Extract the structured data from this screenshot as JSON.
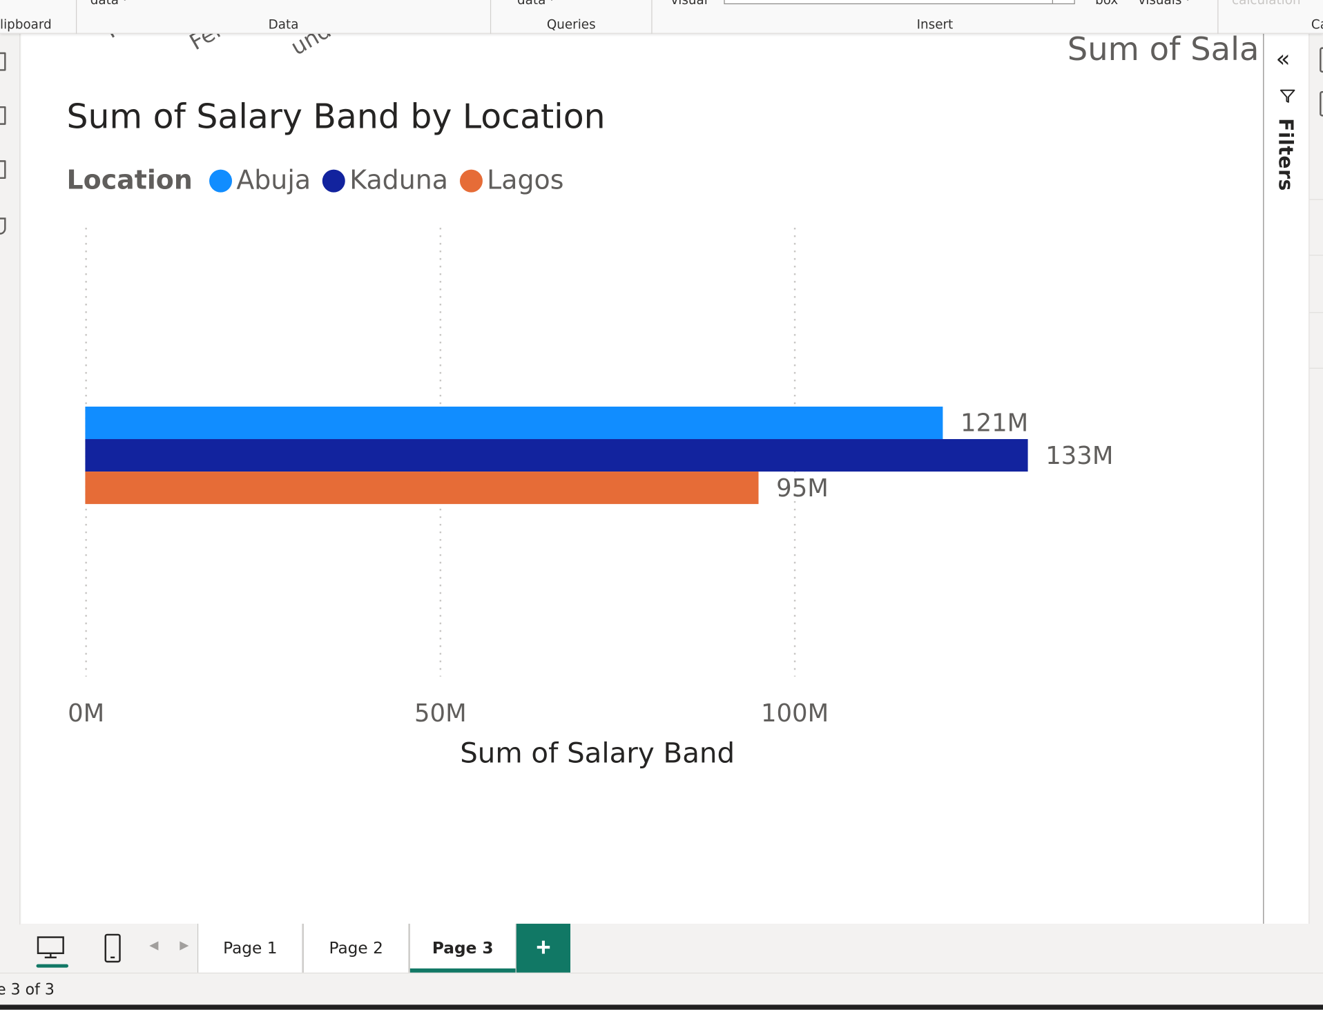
{
  "ribbon": {
    "groups": [
      "lipboard",
      "Data",
      "Queries",
      "Insert",
      "Ca"
    ],
    "top_items": [
      "data ·",
      "data ·",
      "visual",
      "box",
      "visuals ·",
      "calculation"
    ]
  },
  "canvas": {
    "previous_visual_labels": [
      "M",
      "Fem",
      "undis"
    ],
    "cut_title": "Sum of Sala"
  },
  "chart": {
    "title": "Sum of Salary Band by Location",
    "legend_title": "Location",
    "x_axis_title": "Sum of Salary Band",
    "data_labels": [
      "121M",
      "133M",
      "95M"
    ]
  },
  "chart_data": {
    "type": "bar",
    "orientation": "horizontal",
    "title": "Sum of Salary Band by Location",
    "xlabel": "Sum of Salary Band",
    "ylabel": "",
    "legend_title": "Location",
    "legend_position": "top-left",
    "series": [
      {
        "name": "Abuja",
        "values": [
          121
        ],
        "color": "#118dff"
      },
      {
        "name": "Kaduna",
        "values": [
          133
        ],
        "color": "#12239e"
      },
      {
        "name": "Lagos",
        "values": [
          95
        ],
        "color": "#e66c37"
      }
    ],
    "value_unit": "M",
    "xlim": [
      0,
      150
    ],
    "x_ticks": [
      0,
      50,
      100
    ],
    "x_tick_labels": [
      "0M",
      "50M",
      "100M"
    ],
    "grid": "vertical dotted"
  },
  "filters_pane": {
    "label": "Filters",
    "collapse_icon": "double-chevron-left-icon",
    "filter_icon": "funnel-icon"
  },
  "tabs": {
    "items": [
      {
        "label": "Page 1",
        "active": false
      },
      {
        "label": "Page 2",
        "active": false
      },
      {
        "label": "Page 3",
        "active": true
      }
    ],
    "add_label": "+"
  },
  "status": {
    "page_indicator": "e 3 of 3"
  },
  "colors": {
    "accent": "#117865",
    "abuja": "#118dff",
    "kaduna": "#12239e",
    "lagos": "#e66c37"
  }
}
